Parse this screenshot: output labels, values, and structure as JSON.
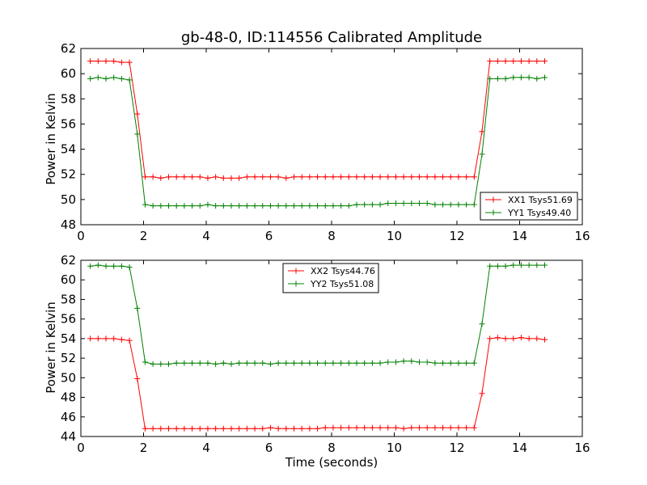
{
  "chart_data": [
    {
      "type": "line",
      "title": "gb-48-0, ID:114556 Calibrated Amplitude",
      "xlabel": "",
      "ylabel": "Power in Kelvin",
      "xlim": [
        0,
        16
      ],
      "ylim": [
        48,
        62
      ],
      "xticks": [
        0,
        2,
        4,
        6,
        8,
        10,
        12,
        14,
        16
      ],
      "yticks": [
        48,
        50,
        52,
        54,
        56,
        58,
        60,
        62
      ],
      "grid": false,
      "legend": "lower-right",
      "x": [
        0.3,
        0.55,
        0.8,
        1.05,
        1.3,
        1.55,
        1.8,
        2.05,
        2.3,
        2.55,
        2.8,
        3.05,
        3.3,
        3.55,
        3.8,
        4.05,
        4.3,
        4.55,
        4.8,
        5.05,
        5.3,
        5.55,
        5.8,
        6.05,
        6.3,
        6.55,
        6.8,
        7.05,
        7.3,
        7.55,
        7.8,
        8.05,
        8.3,
        8.55,
        8.8,
        9.05,
        9.3,
        9.55,
        9.8,
        10.05,
        10.3,
        10.55,
        10.8,
        11.05,
        11.3,
        11.55,
        11.8,
        12.05,
        12.3,
        12.55,
        12.8,
        13.05,
        13.3,
        13.55,
        13.8,
        14.05,
        14.3,
        14.55,
        14.8
      ],
      "series": [
        {
          "name": "XX1 Tsys51.69",
          "color": "#ff0000",
          "values": [
            61.0,
            61.0,
            61.0,
            61.0,
            60.9,
            60.9,
            56.8,
            51.8,
            51.8,
            51.7,
            51.8,
            51.8,
            51.8,
            51.8,
            51.8,
            51.7,
            51.8,
            51.7,
            51.7,
            51.7,
            51.8,
            51.8,
            51.8,
            51.8,
            51.8,
            51.7,
            51.8,
            51.8,
            51.8,
            51.8,
            51.8,
            51.8,
            51.8,
            51.8,
            51.8,
            51.8,
            51.8,
            51.8,
            51.8,
            51.8,
            51.8,
            51.8,
            51.8,
            51.8,
            51.8,
            51.8,
            51.8,
            51.8,
            51.8,
            51.8,
            55.4,
            61.0,
            61.0,
            61.0,
            61.0,
            61.0,
            61.0,
            61.0,
            61.0
          ]
        },
        {
          "name": "YY1 Tsys49.40",
          "color": "#008000",
          "values": [
            59.6,
            59.7,
            59.6,
            59.7,
            59.6,
            59.5,
            55.2,
            49.6,
            49.5,
            49.5,
            49.5,
            49.5,
            49.5,
            49.5,
            49.5,
            49.6,
            49.5,
            49.5,
            49.5,
            49.5,
            49.5,
            49.5,
            49.5,
            49.5,
            49.5,
            49.5,
            49.5,
            49.5,
            49.5,
            49.5,
            49.5,
            49.5,
            49.5,
            49.5,
            49.6,
            49.6,
            49.6,
            49.6,
            49.7,
            49.7,
            49.7,
            49.7,
            49.7,
            49.7,
            49.6,
            49.6,
            49.6,
            49.6,
            49.6,
            49.6,
            53.6,
            59.6,
            59.6,
            59.6,
            59.7,
            59.7,
            59.7,
            59.6,
            59.7
          ]
        }
      ]
    },
    {
      "type": "line",
      "title": "",
      "xlabel": "Time (seconds)",
      "ylabel": "Power in Kelvin",
      "xlim": [
        0,
        16
      ],
      "ylim": [
        44,
        62
      ],
      "xticks": [
        0,
        2,
        4,
        6,
        8,
        10,
        12,
        14,
        16
      ],
      "yticks": [
        44,
        46,
        48,
        50,
        52,
        54,
        56,
        58,
        60,
        62
      ],
      "grid": false,
      "legend": "top-center",
      "x": [
        0.3,
        0.55,
        0.8,
        1.05,
        1.3,
        1.55,
        1.8,
        2.05,
        2.3,
        2.55,
        2.8,
        3.05,
        3.3,
        3.55,
        3.8,
        4.05,
        4.3,
        4.55,
        4.8,
        5.05,
        5.3,
        5.55,
        5.8,
        6.05,
        6.3,
        6.55,
        6.8,
        7.05,
        7.3,
        7.55,
        7.8,
        8.05,
        8.3,
        8.55,
        8.8,
        9.05,
        9.3,
        9.55,
        9.8,
        10.05,
        10.3,
        10.55,
        10.8,
        11.05,
        11.3,
        11.55,
        11.8,
        12.05,
        12.3,
        12.55,
        12.8,
        13.05,
        13.3,
        13.55,
        13.8,
        14.05,
        14.3,
        14.55,
        14.8
      ],
      "series": [
        {
          "name": "XX2 Tsys44.76",
          "color": "#ff0000",
          "values": [
            54.0,
            54.0,
            54.0,
            54.0,
            53.9,
            53.8,
            49.9,
            44.8,
            44.8,
            44.8,
            44.8,
            44.8,
            44.8,
            44.8,
            44.8,
            44.8,
            44.8,
            44.8,
            44.8,
            44.8,
            44.8,
            44.8,
            44.8,
            44.9,
            44.8,
            44.8,
            44.8,
            44.8,
            44.8,
            44.8,
            44.9,
            44.9,
            44.9,
            44.9,
            44.9,
            44.9,
            44.9,
            44.9,
            44.9,
            44.9,
            44.8,
            44.9,
            44.9,
            44.9,
            44.9,
            44.9,
            44.9,
            44.9,
            44.9,
            44.9,
            48.4,
            54.0,
            54.1,
            54.0,
            54.0,
            54.1,
            54.0,
            54.0,
            53.9
          ]
        },
        {
          "name": "YY2 Tsys51.08",
          "color": "#008000",
          "values": [
            61.4,
            61.5,
            61.4,
            61.4,
            61.4,
            61.3,
            57.1,
            51.6,
            51.4,
            51.4,
            51.4,
            51.5,
            51.5,
            51.5,
            51.5,
            51.5,
            51.4,
            51.5,
            51.4,
            51.5,
            51.5,
            51.5,
            51.5,
            51.4,
            51.5,
            51.5,
            51.5,
            51.5,
            51.5,
            51.5,
            51.5,
            51.5,
            51.5,
            51.5,
            51.5,
            51.5,
            51.5,
            51.5,
            51.6,
            51.6,
            51.7,
            51.7,
            51.6,
            51.6,
            51.5,
            51.5,
            51.5,
            51.5,
            51.5,
            51.5,
            55.5,
            61.4,
            61.4,
            61.4,
            61.5,
            61.5,
            61.5,
            61.5,
            61.5
          ]
        }
      ]
    }
  ]
}
